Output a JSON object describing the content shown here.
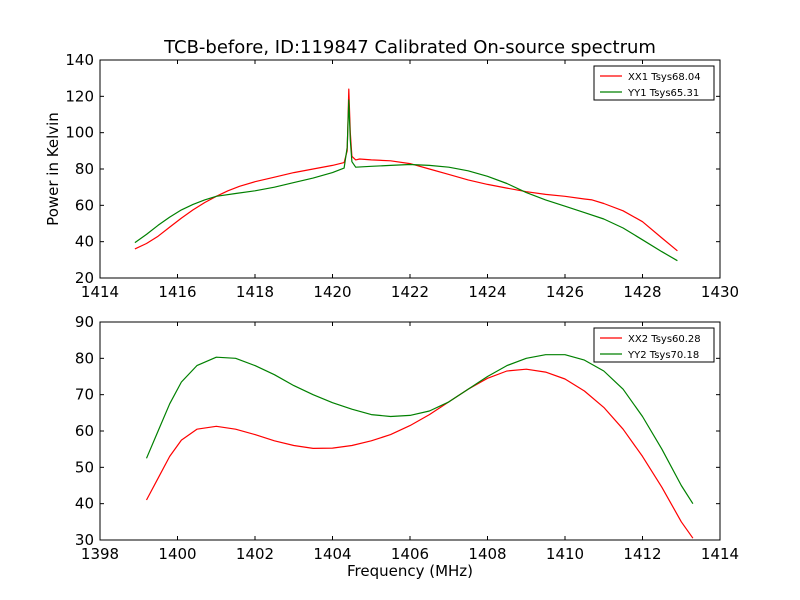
{
  "figure_title": "TCB-before, ID:119847 Calibrated On-source spectrum",
  "chart_data": [
    {
      "type": "line",
      "ylabel": "Power in Kelvin",
      "xlabel": "",
      "xlim": [
        1414,
        1430
      ],
      "ylim": [
        20,
        140
      ],
      "xticks": [
        1414,
        1416,
        1418,
        1420,
        1422,
        1424,
        1426,
        1428,
        1430
      ],
      "yticks": [
        20,
        40,
        60,
        80,
        100,
        120,
        140
      ],
      "legend_position": "top-right",
      "grid": false,
      "series": [
        {
          "name": "XX1 Tsys68.04",
          "color": "#ff0000",
          "points": [
            [
              1414.9,
              36
            ],
            [
              1415.2,
              39
            ],
            [
              1415.5,
              43
            ],
            [
              1415.8,
              48
            ],
            [
              1416.1,
              53
            ],
            [
              1416.4,
              57.5
            ],
            [
              1416.7,
              61.5
            ],
            [
              1417.0,
              65
            ],
            [
              1417.3,
              68
            ],
            [
              1417.6,
              70.5
            ],
            [
              1418.0,
              73
            ],
            [
              1418.5,
              75.5
            ],
            [
              1419.0,
              78
            ],
            [
              1419.5,
              80
            ],
            [
              1420.0,
              82
            ],
            [
              1420.3,
              83.5
            ],
            [
              1420.38,
              90
            ],
            [
              1420.42,
              124
            ],
            [
              1420.46,
              100
            ],
            [
              1420.5,
              87
            ],
            [
              1420.6,
              85
            ],
            [
              1420.7,
              85.5
            ],
            [
              1421.0,
              85
            ],
            [
              1421.5,
              84.5
            ],
            [
              1422.0,
              83
            ],
            [
              1422.5,
              80
            ],
            [
              1423.0,
              77
            ],
            [
              1423.5,
              74
            ],
            [
              1424.0,
              71.5
            ],
            [
              1424.5,
              69.5
            ],
            [
              1425.0,
              67.5
            ],
            [
              1425.5,
              66
            ],
            [
              1426.0,
              65
            ],
            [
              1426.5,
              63.5
            ],
            [
              1426.7,
              63
            ],
            [
              1427.0,
              61
            ],
            [
              1427.5,
              57
            ],
            [
              1428.0,
              51
            ],
            [
              1428.5,
              42
            ],
            [
              1428.9,
              35
            ]
          ]
        },
        {
          "name": "YY1 Tsys65.31",
          "color": "#008000",
          "points": [
            [
              1414.9,
              39.5
            ],
            [
              1415.2,
              44
            ],
            [
              1415.5,
              49
            ],
            [
              1415.8,
              53.5
            ],
            [
              1416.1,
              57.5
            ],
            [
              1416.4,
              60.5
            ],
            [
              1416.7,
              63
            ],
            [
              1417.0,
              65
            ],
            [
              1417.5,
              66.5
            ],
            [
              1418.0,
              68
            ],
            [
              1418.5,
              70
            ],
            [
              1419.0,
              72.5
            ],
            [
              1419.5,
              75
            ],
            [
              1420.0,
              78
            ],
            [
              1420.3,
              80.5
            ],
            [
              1420.38,
              92
            ],
            [
              1420.42,
              118
            ],
            [
              1420.46,
              96
            ],
            [
              1420.5,
              84
            ],
            [
              1420.6,
              81
            ],
            [
              1421.0,
              81.5
            ],
            [
              1421.5,
              82
            ],
            [
              1422.0,
              82.5
            ],
            [
              1422.5,
              82
            ],
            [
              1423.0,
              81
            ],
            [
              1423.5,
              79
            ],
            [
              1424.0,
              76
            ],
            [
              1424.5,
              72
            ],
            [
              1425.0,
              67
            ],
            [
              1425.5,
              63
            ],
            [
              1426.0,
              59.5
            ],
            [
              1426.5,
              56
            ],
            [
              1427.0,
              52.5
            ],
            [
              1427.5,
              47.5
            ],
            [
              1428.0,
              41
            ],
            [
              1428.5,
              34.5
            ],
            [
              1428.9,
              29.5
            ]
          ]
        }
      ]
    },
    {
      "type": "line",
      "xlabel": "Frequency (MHz)",
      "ylabel": "",
      "xlim": [
        1398,
        1414
      ],
      "ylim": [
        30,
        90
      ],
      "xticks": [
        1398,
        1400,
        1402,
        1404,
        1406,
        1408,
        1410,
        1412,
        1414
      ],
      "yticks": [
        30,
        40,
        50,
        60,
        70,
        80,
        90
      ],
      "legend_position": "top-right",
      "grid": false,
      "series": [
        {
          "name": "XX2 Tsys60.28",
          "color": "#ff0000",
          "points": [
            [
              1399.2,
              41
            ],
            [
              1399.5,
              47
            ],
            [
              1399.8,
              53
            ],
            [
              1400.1,
              57.5
            ],
            [
              1400.5,
              60.5
            ],
            [
              1401.0,
              61.3
            ],
            [
              1401.5,
              60.5
            ],
            [
              1402.0,
              59
            ],
            [
              1402.5,
              57.3
            ],
            [
              1403.0,
              56
            ],
            [
              1403.5,
              55.2
            ],
            [
              1404.0,
              55.3
            ],
            [
              1404.5,
              56
            ],
            [
              1405.0,
              57.3
            ],
            [
              1405.5,
              59
            ],
            [
              1406.0,
              61.5
            ],
            [
              1406.5,
              64.5
            ],
            [
              1407.0,
              68
            ],
            [
              1407.5,
              71.5
            ],
            [
              1408.0,
              74.5
            ],
            [
              1408.5,
              76.5
            ],
            [
              1409.0,
              77
            ],
            [
              1409.5,
              76.2
            ],
            [
              1410.0,
              74.3
            ],
            [
              1410.5,
              71
            ],
            [
              1411.0,
              66.5
            ],
            [
              1411.5,
              60.5
            ],
            [
              1412.0,
              53
            ],
            [
              1412.5,
              44.5
            ],
            [
              1413.0,
              35
            ],
            [
              1413.3,
              30.5
            ]
          ]
        },
        {
          "name": "YY2 Tsys70.18",
          "color": "#008000",
          "points": [
            [
              1399.2,
              52.5
            ],
            [
              1399.5,
              60
            ],
            [
              1399.8,
              67.5
            ],
            [
              1400.1,
              73.5
            ],
            [
              1400.5,
              78
            ],
            [
              1401.0,
              80.3
            ],
            [
              1401.5,
              80
            ],
            [
              1402.0,
              78
            ],
            [
              1402.5,
              75.5
            ],
            [
              1403.0,
              72.5
            ],
            [
              1403.5,
              70
            ],
            [
              1404.0,
              67.8
            ],
            [
              1404.5,
              66
            ],
            [
              1405.0,
              64.5
            ],
            [
              1405.5,
              64
            ],
            [
              1406.0,
              64.3
            ],
            [
              1406.5,
              65.5
            ],
            [
              1407.0,
              68
            ],
            [
              1407.5,
              71.5
            ],
            [
              1408.0,
              75
            ],
            [
              1408.5,
              78
            ],
            [
              1409.0,
              80
            ],
            [
              1409.5,
              81
            ],
            [
              1410.0,
              81
            ],
            [
              1410.5,
              79.5
            ],
            [
              1411.0,
              76.5
            ],
            [
              1411.5,
              71.5
            ],
            [
              1412.0,
              64
            ],
            [
              1412.5,
              55
            ],
            [
              1413.0,
              45
            ],
            [
              1413.3,
              40
            ]
          ]
        }
      ]
    }
  ]
}
